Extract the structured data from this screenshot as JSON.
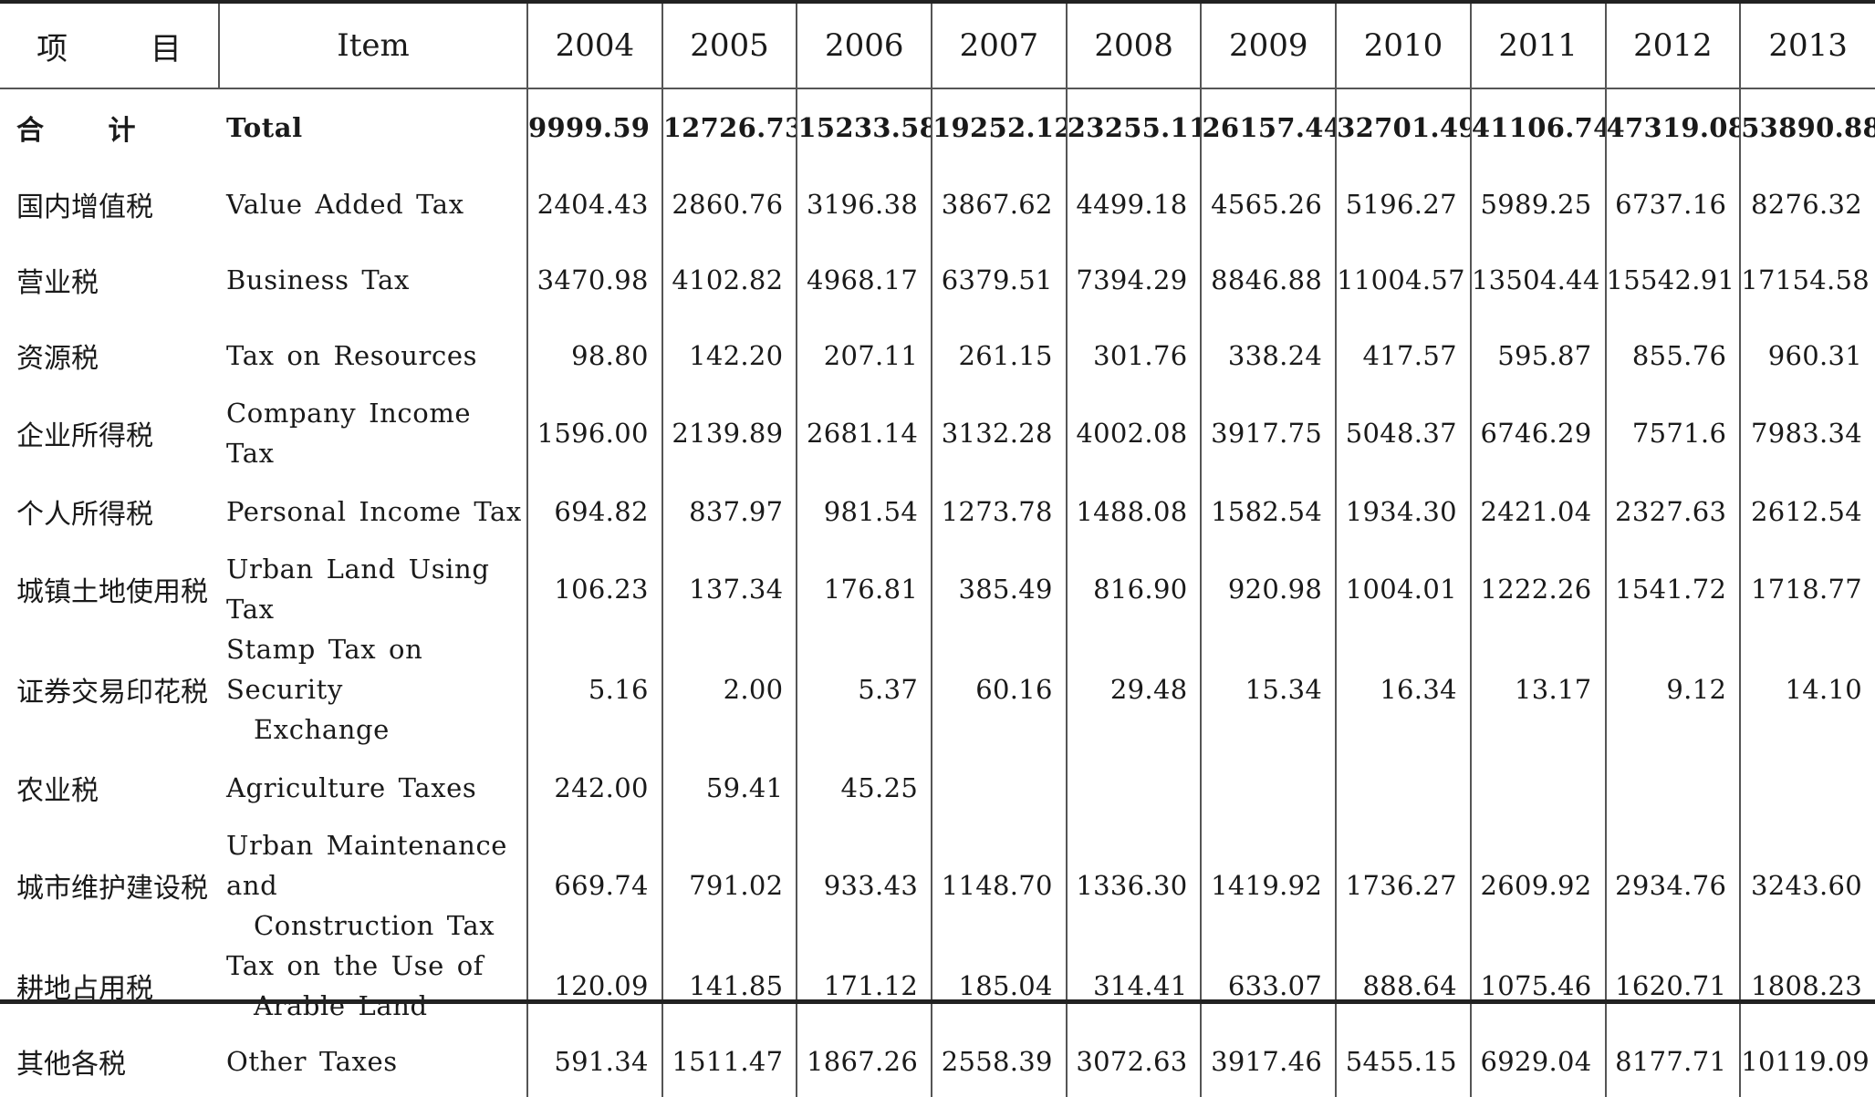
{
  "header": {
    "cn": "项 目",
    "en": "Item",
    "years": [
      "2004",
      "2005",
      "2006",
      "2007",
      "2008",
      "2009",
      "2010",
      "2011",
      "2012",
      "2013"
    ]
  },
  "rows": [
    {
      "cn": "合 计",
      "en": [
        "Total"
      ],
      "values": [
        "9999.59",
        "12726.73",
        "15233.58",
        "19252.12",
        "23255.11",
        "26157.44",
        "32701.49",
        "41106.74",
        "47319.08",
        "53890.88"
      ]
    },
    {
      "cn": "国内增值税",
      "en": [
        "Value Added Tax"
      ],
      "values": [
        "2404.43",
        "2860.76",
        "3196.38",
        "3867.62",
        "4499.18",
        "4565.26",
        "5196.27",
        "5989.25",
        "6737.16",
        "8276.32"
      ]
    },
    {
      "cn": "营业税",
      "en": [
        "Business Tax"
      ],
      "values": [
        "3470.98",
        "4102.82",
        "4968.17",
        "6379.51",
        "7394.29",
        "8846.88",
        "11004.57",
        "13504.44",
        "15542.91",
        "17154.58"
      ]
    },
    {
      "cn": "资源税",
      "en": [
        "Tax on Resources"
      ],
      "values": [
        "98.80",
        "142.20",
        "207.11",
        "261.15",
        "301.76",
        "338.24",
        "417.57",
        "595.87",
        "855.76",
        "960.31"
      ]
    },
    {
      "cn": "企业所得税",
      "en": [
        "Company Income Tax"
      ],
      "values": [
        "1596.00",
        "2139.89",
        "2681.14",
        "3132.28",
        "4002.08",
        "3917.75",
        "5048.37",
        "6746.29",
        "7571.6",
        "7983.34"
      ]
    },
    {
      "cn": "个人所得税",
      "en": [
        "Personal Income Tax"
      ],
      "values": [
        "694.82",
        "837.97",
        "981.54",
        "1273.78",
        "1488.08",
        "1582.54",
        "1934.30",
        "2421.04",
        "2327.63",
        "2612.54"
      ]
    },
    {
      "cn": "城镇土地使用税",
      "en": [
        "Urban Land Using Tax"
      ],
      "values": [
        "106.23",
        "137.34",
        "176.81",
        "385.49",
        "816.90",
        "920.98",
        "1004.01",
        "1222.26",
        "1541.72",
        "1718.77"
      ]
    },
    {
      "cn": "证券交易印花税",
      "en": [
        "Stamp Tax on Security",
        "Exchange"
      ],
      "values": [
        "5.16",
        "2.00",
        "5.37",
        "60.16",
        "29.48",
        "15.34",
        "16.34",
        "13.17",
        "9.12",
        "14.10"
      ]
    },
    {
      "cn": "农业税",
      "en": [
        "Agriculture Taxes"
      ],
      "values": [
        "242.00",
        "59.41",
        "45.25",
        "",
        "",
        "",
        "",
        "",
        "",
        ""
      ]
    },
    {
      "cn": "城市维护建设税",
      "en": [
        "Urban Maintenance and",
        "Construction Tax"
      ],
      "values": [
        "669.74",
        "791.02",
        "933.43",
        "1148.70",
        "1336.30",
        "1419.92",
        "1736.27",
        "2609.92",
        "2934.76",
        "3243.60"
      ]
    },
    {
      "cn": "耕地占用税",
      "en": [
        "Tax on the Use of",
        "Arable Land"
      ],
      "values": [
        "120.09",
        "141.85",
        "171.12",
        "185.04",
        "314.41",
        "633.07",
        "888.64",
        "1075.46",
        "1620.71",
        "1808.23"
      ]
    },
    {
      "cn": "其他各税",
      "en": [
        "Other Taxes"
      ],
      "values": [
        "591.34",
        "1511.47",
        "1867.26",
        "2558.39",
        "3072.63",
        "3917.46",
        "5455.15",
        "6929.04",
        "8177.71",
        "10119.09"
      ]
    }
  ]
}
